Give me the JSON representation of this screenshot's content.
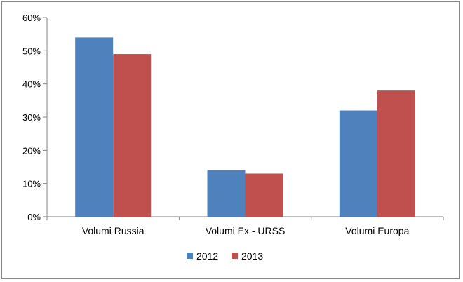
{
  "chart_data": {
    "type": "bar",
    "categories": [
      "Volumi Russia",
      "Volumi Ex - URSS",
      "Volumi Europa"
    ],
    "series": [
      {
        "name": "2012",
        "values": [
          54,
          14,
          32
        ],
        "color": "#4F81BD"
      },
      {
        "name": "2013",
        "values": [
          49,
          13,
          38
        ],
        "color": "#C0504D"
      }
    ],
    "ylim": [
      0,
      60
    ],
    "yticks": [
      0,
      10,
      20,
      30,
      40,
      50,
      60
    ],
    "ytick_labels": [
      "0%",
      "10%",
      "20%",
      "30%",
      "40%",
      "50%",
      "60%"
    ],
    "grid": false,
    "legend": "bottom",
    "title": "",
    "xlabel": "",
    "ylabel": ""
  }
}
